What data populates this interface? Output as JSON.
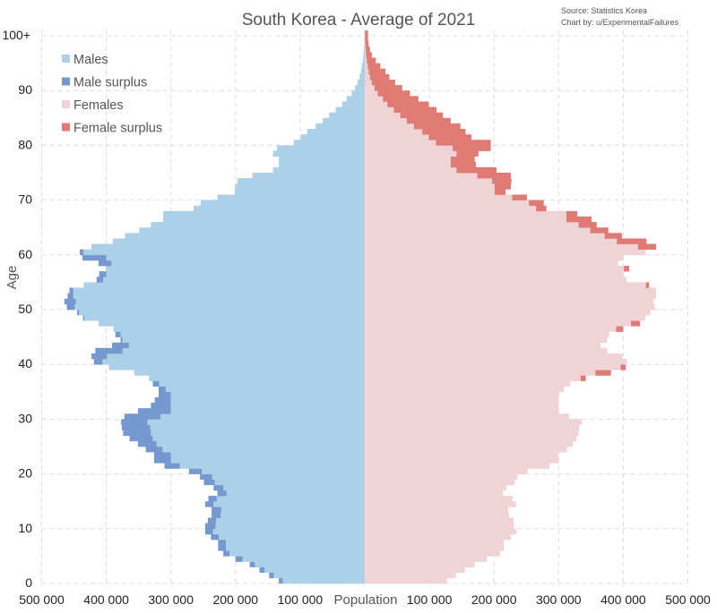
{
  "chart_data": {
    "type": "bar",
    "subtype": "population-pyramid",
    "title": "South Korea - Average of 2021",
    "source": "Source: Statistics Korea",
    "credit": "Chart by:   u/ExperimentalFailures",
    "xlabel": "Population",
    "ylabel": "Age",
    "xlim": [
      -500000,
      500000
    ],
    "x_ticks": [
      "500 000",
      "400 000",
      "300 000",
      "200 000",
      "100 000",
      "100 000",
      "200 000",
      "300 000",
      "400 000",
      "500 000"
    ],
    "y_ticks": [
      "0",
      "10",
      "20",
      "30",
      "40",
      "50",
      "60",
      "70",
      "80",
      "90",
      "100+"
    ],
    "grid": true,
    "legend_position": "top-left",
    "legend": [
      "Males",
      "Male surplus",
      "Females",
      "Female surplus"
    ],
    "colors": {
      "males": "#acd0e8",
      "male_surplus": "#7598cf",
      "females": "#efd3d5",
      "female_surplus": "#e07a74"
    },
    "ages": [
      "0",
      "1",
      "2",
      "3",
      "4",
      "5",
      "6",
      "7",
      "8",
      "9",
      "10",
      "11",
      "12",
      "13",
      "14",
      "15",
      "16",
      "17",
      "18",
      "19",
      "20",
      "21",
      "22",
      "23",
      "24",
      "25",
      "26",
      "27",
      "28",
      "29",
      "30",
      "31",
      "32",
      "33",
      "34",
      "35",
      "36",
      "37",
      "38",
      "39",
      "40",
      "41",
      "42",
      "43",
      "44",
      "45",
      "46",
      "47",
      "48",
      "49",
      "50",
      "51",
      "52",
      "53",
      "54",
      "55",
      "56",
      "57",
      "58",
      "59",
      "60",
      "61",
      "62",
      "63",
      "64",
      "65",
      "66",
      "67",
      "68",
      "69",
      "70",
      "71",
      "72",
      "73",
      "74",
      "75",
      "76",
      "77",
      "78",
      "79",
      "80",
      "81",
      "82",
      "83",
      "84",
      "85",
      "86",
      "87",
      "88",
      "89",
      "90",
      "91",
      "92",
      "93",
      "94",
      "95",
      "96",
      "97",
      "98",
      "99",
      "100+"
    ],
    "series": [
      {
        "name": "Males",
        "values": [
          133000,
          148000,
          163000,
          178000,
          200000,
          219000,
          227000,
          227000,
          238000,
          247000,
          247000,
          243000,
          237000,
          237000,
          247000,
          242000,
          228000,
          234000,
          249000,
          255000,
          272000,
          310000,
          326000,
          326000,
          339000,
          351000,
          364000,
          374000,
          376000,
          377000,
          372000,
          351000,
          331000,
          325000,
          319000,
          319000,
          328000,
          334000,
          357000,
          396000,
          419000,
          423000,
          417000,
          391000,
          378000,
          386000,
          389000,
          412000,
          436000,
          445000,
          461000,
          465000,
          460000,
          457000,
          435000,
          415000,
          411000,
          401000,
          412000,
          437000,
          441000,
          423000,
          390000,
          371000,
          349000,
          331000,
          312000,
          312000,
          265000,
          254000,
          228000,
          201000,
          201000,
          197000,
          174000,
          142000,
          133000,
          133000,
          142000,
          136000,
          110000,
          99000,
          89000,
          76000,
          65000,
          55000,
          45000,
          35000,
          28000,
          20000,
          15000,
          11000,
          8000,
          6000,
          4600,
          3000,
          2000,
          1500,
          1000,
          500,
          500
        ]
      },
      {
        "name": "Females",
        "values": [
          127000,
          141000,
          155000,
          170000,
          189000,
          209000,
          215000,
          215000,
          226000,
          235000,
          231000,
          230000,
          223000,
          222000,
          234000,
          229000,
          214000,
          219000,
          232000,
          236000,
          252000,
          286000,
          300000,
          300000,
          313000,
          322000,
          328000,
          331000,
          332000,
          336000,
          316000,
          300000,
          300000,
          300000,
          300000,
          308000,
          318000,
          342000,
          381000,
          404000,
          406000,
          399000,
          375000,
          365000,
          375000,
          378000,
          400000,
          426000,
          434000,
          442000,
          449000,
          447000,
          451000,
          451000,
          440000,
          405000,
          400000,
          409000,
          392000,
          400000,
          435000,
          451000,
          436000,
          398000,
          377000,
          359000,
          351000,
          329000,
          281000,
          277000,
          251000,
          218000,
          226000,
          227000,
          226000,
          204000,
          172000,
          170000,
          176000,
          195000,
          195000,
          165000,
          156000,
          148000,
          133000,
          121000,
          111000,
          99000,
          83000,
          70000,
          58000,
          47000,
          38000,
          32000,
          24000,
          17000,
          11000,
          8000,
          6000,
          5000,
          5000
        ]
      }
    ]
  }
}
